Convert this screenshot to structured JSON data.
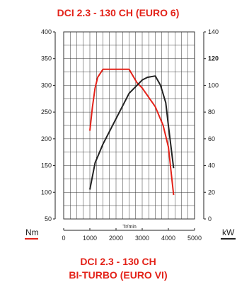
{
  "chart_data": {
    "type": "line",
    "title": "DCI 2.3 - 130 CH (EURO 6)",
    "subtitle": [
      "DCI 2.3 - 130 CH",
      "BI-TURBO (EURO VI)"
    ],
    "xlabel": "Tr/min",
    "ylabel_left": "Nm",
    "ylabel_right": "kW",
    "xlim": [
      0,
      5000
    ],
    "ylim_left": [
      50,
      400
    ],
    "ylim_right": [
      0,
      140
    ],
    "x_ticks": [
      "0",
      "1000",
      "2000",
      "3000",
      "4000",
      "5000"
    ],
    "y_ticks_left": [
      "400",
      "350",
      "300",
      "250",
      "200",
      "150",
      "100",
      "50"
    ],
    "y_ticks_right": [
      "140",
      "120",
      "100",
      "80",
      "60",
      "40",
      "20",
      "0"
    ],
    "y_right_highlight": "120",
    "grid": true,
    "colors": {
      "title": "#e32219",
      "torque": "#e32219",
      "power": "#222222",
      "grid": "#333333"
    },
    "series": [
      {
        "name": "Nm",
        "axis": "left",
        "x": [
          1000,
          1100,
          1200,
          1300,
          1500,
          2000,
          2500,
          2800,
          3000,
          3500,
          3800,
          4000,
          4200
        ],
        "values": [
          215,
          260,
          295,
          315,
          330,
          330,
          330,
          305,
          295,
          260,
          225,
          185,
          95
        ]
      },
      {
        "name": "kW",
        "axis": "right",
        "x": [
          1000,
          1200,
          1500,
          2000,
          2500,
          3000,
          3200,
          3500,
          3700,
          3900,
          4000,
          4200
        ],
        "values": [
          22,
          42,
          56,
          75,
          94,
          104,
          106,
          107,
          100,
          87,
          70,
          38
        ]
      }
    ]
  }
}
